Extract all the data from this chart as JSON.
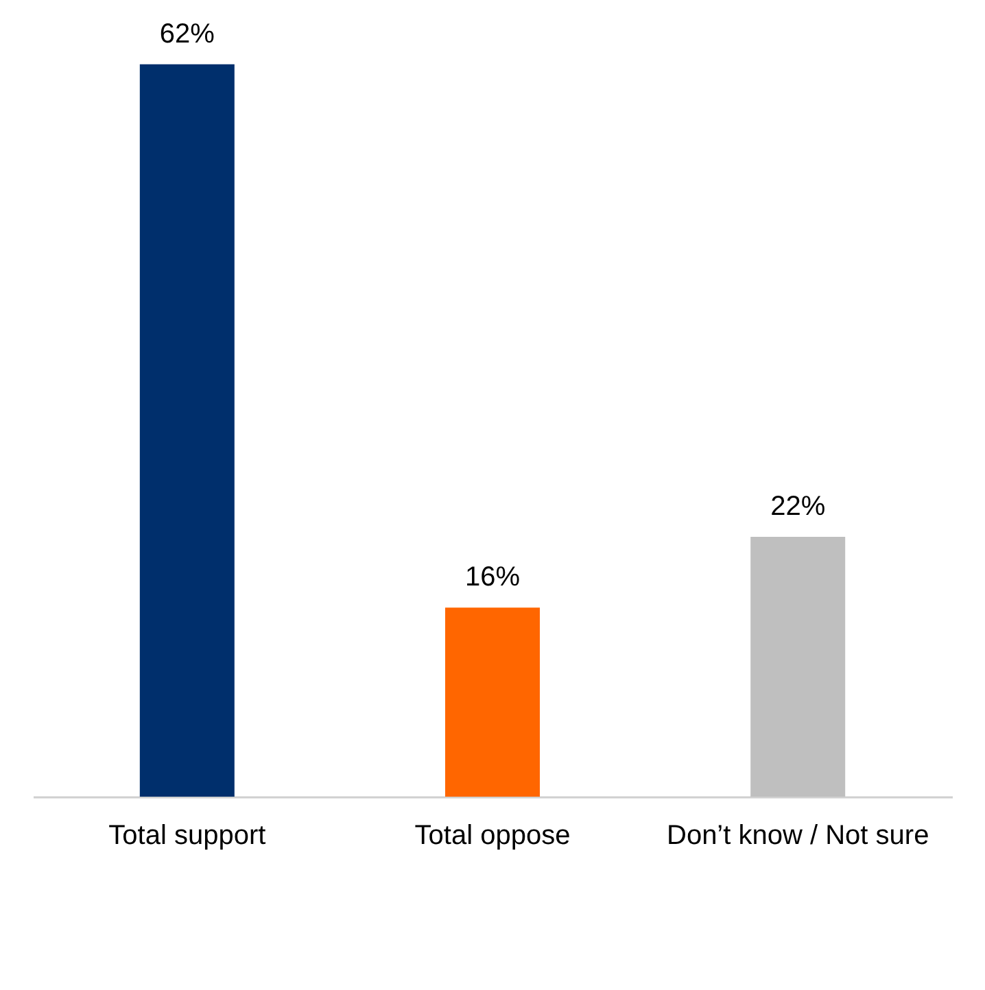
{
  "chart_data": {
    "type": "bar",
    "categories": [
      "Total support",
      "Total oppose",
      "Don’t know / Not sure"
    ],
    "values": [
      62,
      16,
      22
    ],
    "colors": [
      "#002f6c",
      "#ff6600",
      "#bfbfbf"
    ],
    "value_labels": [
      "62%",
      "16%",
      "22%"
    ]
  }
}
